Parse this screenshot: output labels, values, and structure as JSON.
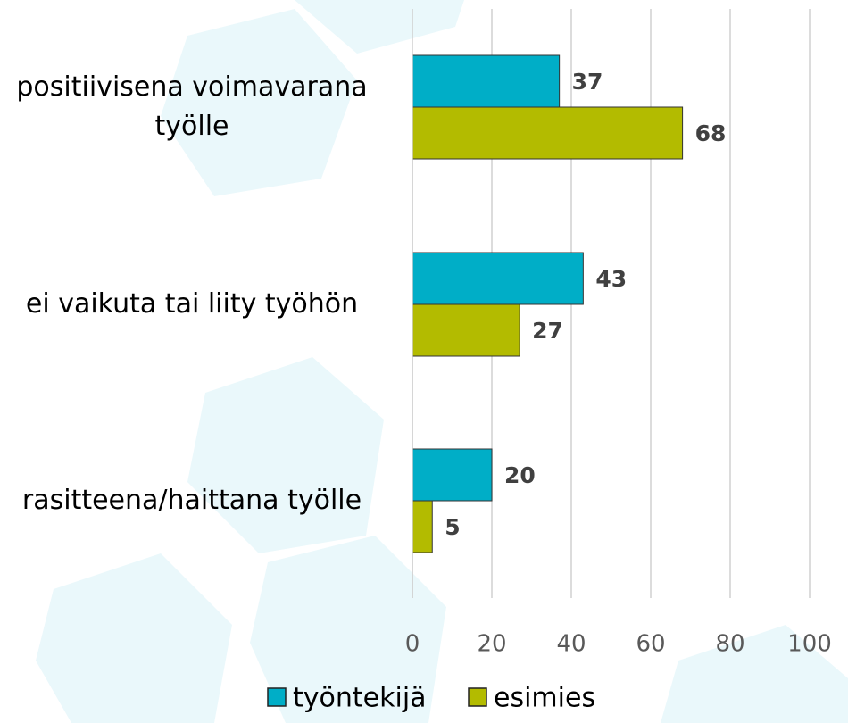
{
  "chart_data": {
    "type": "bar",
    "orientation": "horizontal",
    "categories": [
      "positiivisena voimavarana työlle",
      "ei vaikuta tai liity työhön",
      "rasitteena/haittana työlle"
    ],
    "series": [
      {
        "name": "työntekijä",
        "color": "#00aec7",
        "values": [
          37,
          43,
          20
        ]
      },
      {
        "name": "esimies",
        "color": "#b3bb00",
        "values": [
          68,
          27,
          5
        ]
      }
    ],
    "xlim": [
      0,
      100
    ],
    "xticks": [
      0,
      20,
      40,
      60,
      80,
      100
    ],
    "grid": true,
    "legend": "bottom"
  }
}
